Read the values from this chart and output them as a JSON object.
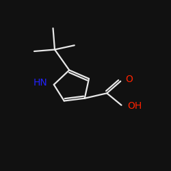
{
  "background_color": "#111111",
  "line_color": "#e8e8e8",
  "atom_colors": {
    "O": "#ff2200",
    "N": "#2222ff",
    "C": "#e8e8e8"
  },
  "bond_lw": 1.6,
  "font_size": 10
}
